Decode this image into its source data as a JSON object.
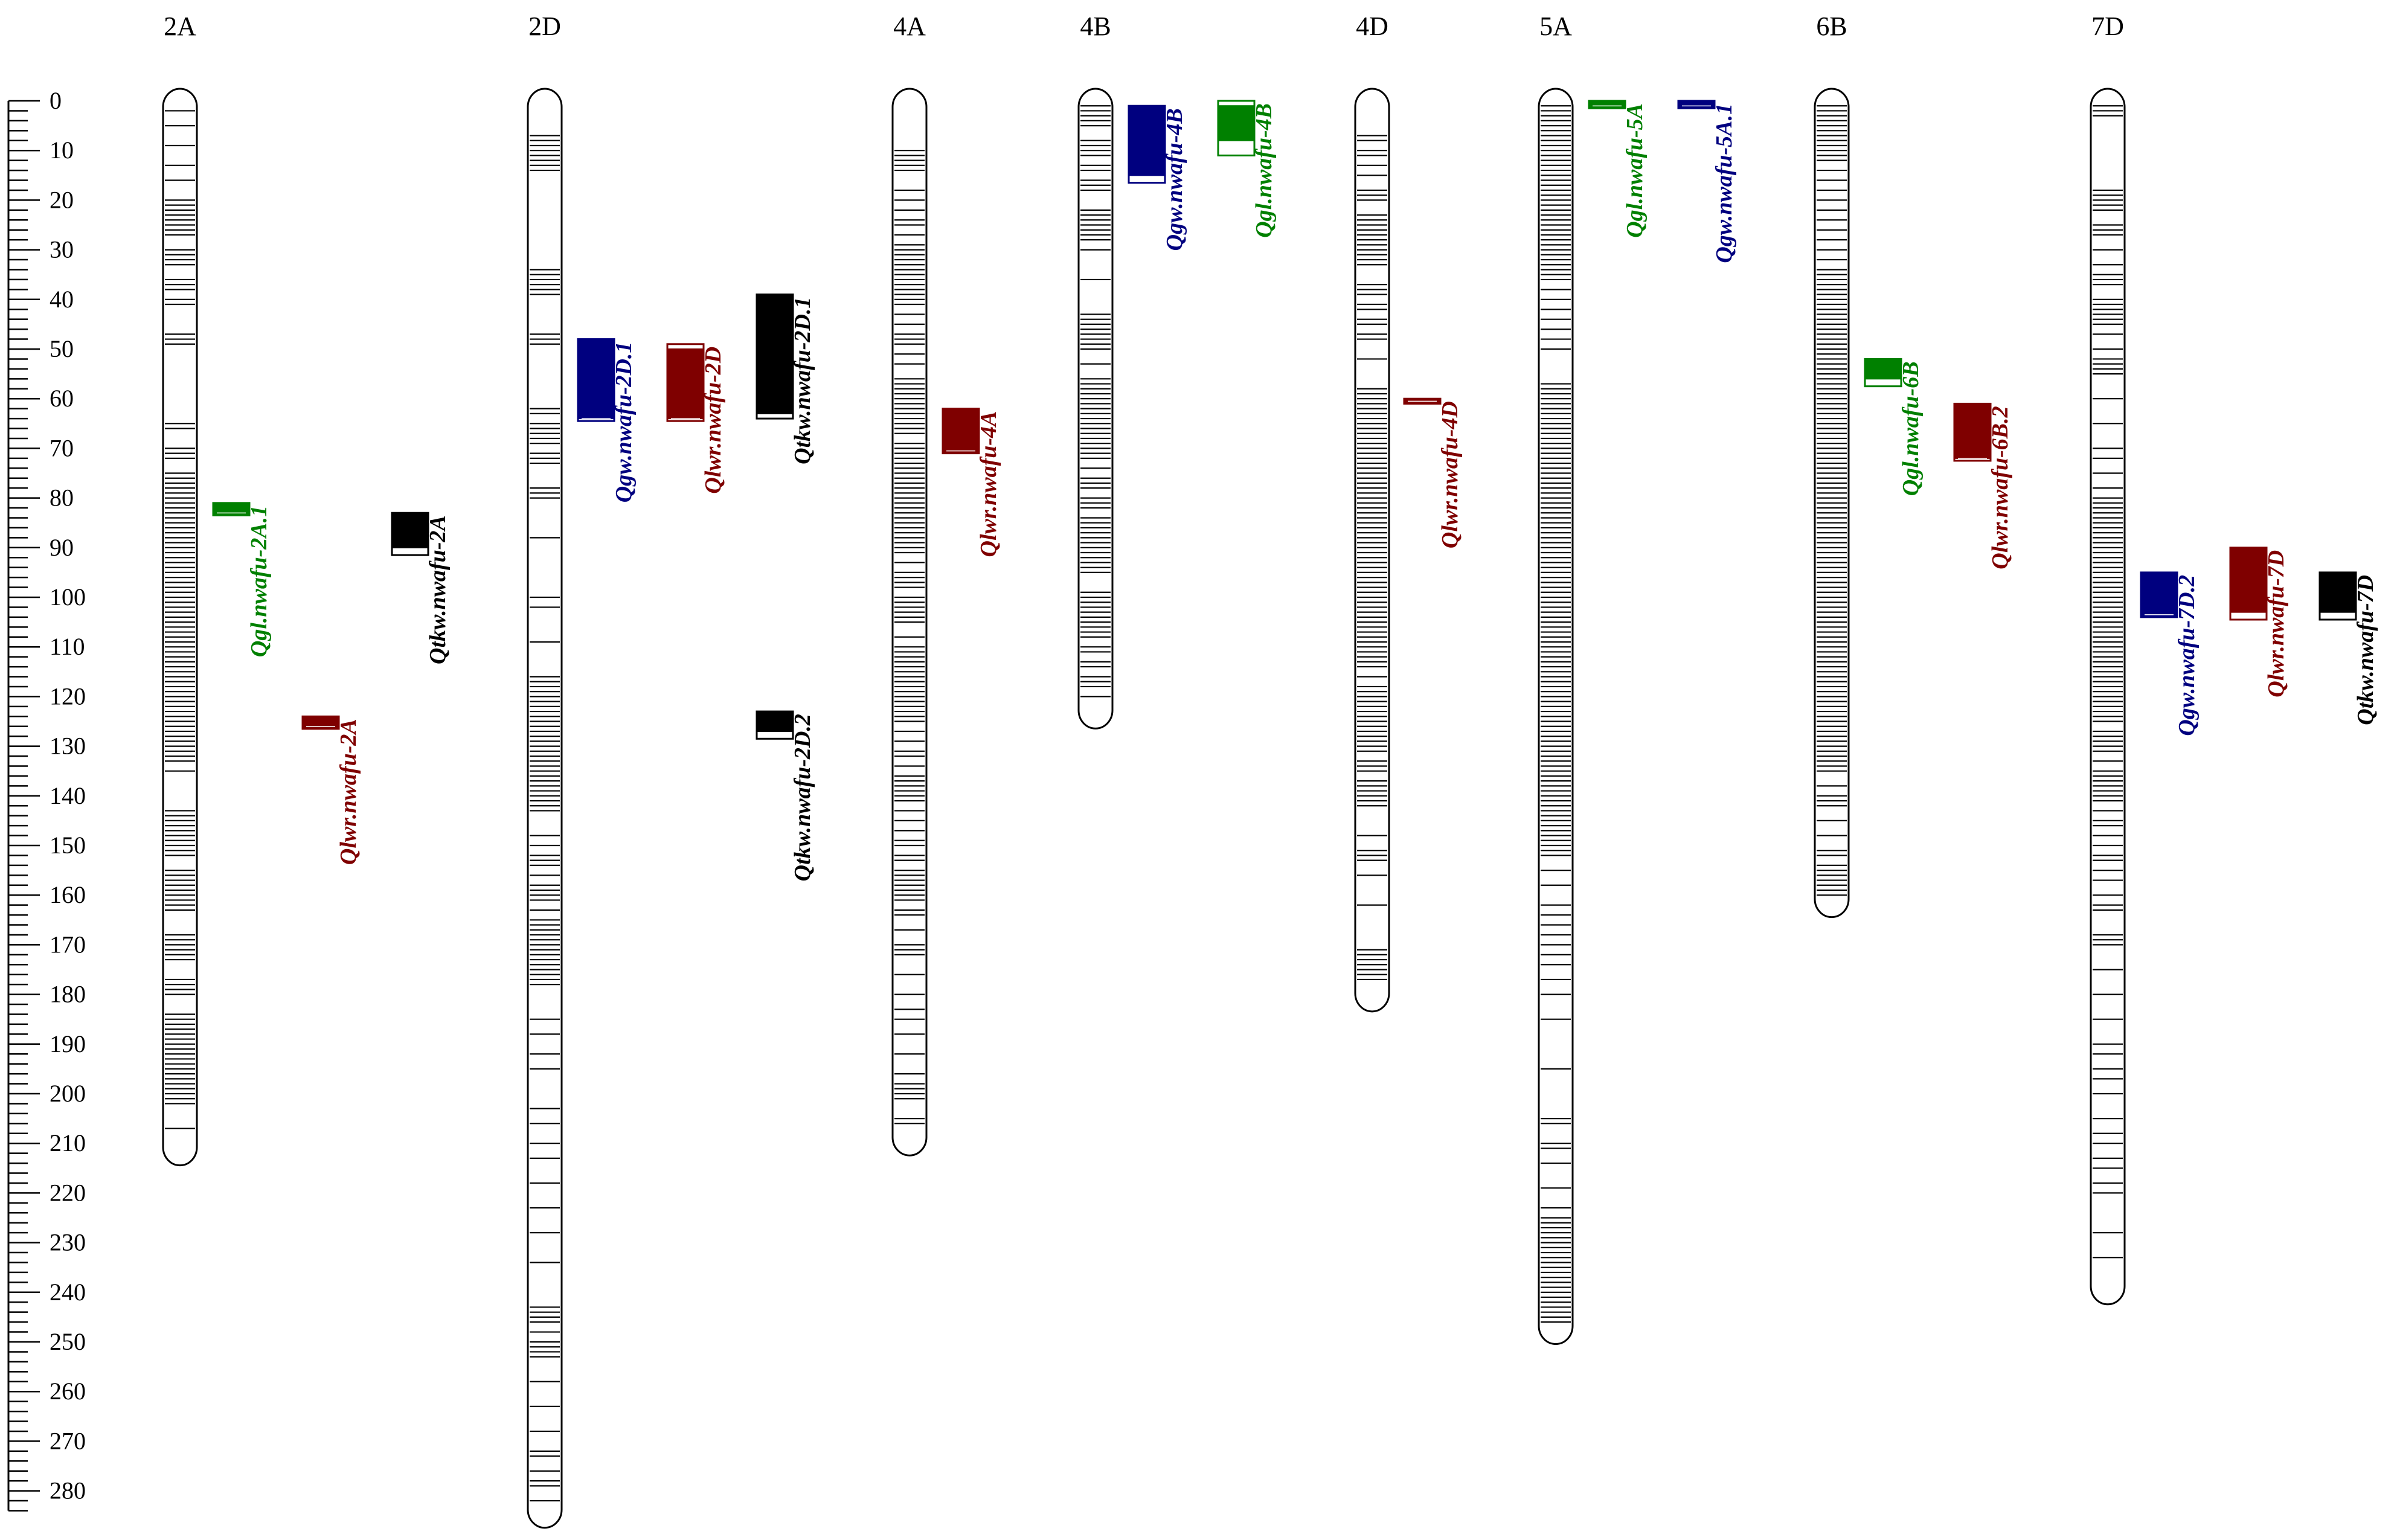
{
  "scale": {
    "min": 0,
    "max": 280,
    "major_step": 10,
    "minor_step": 2,
    "labels": [
      "0",
      "10",
      "20",
      "30",
      "40",
      "50",
      "60",
      "70",
      "80",
      "90",
      "100",
      "110",
      "120",
      "130",
      "140",
      "150",
      "160",
      "170",
      "180",
      "190",
      "200",
      "210",
      "220",
      "230",
      "240",
      "250",
      "260",
      "270",
      "280"
    ]
  },
  "colors": {
    "green": "#008000",
    "blue": "#00007f",
    "red": "#7f0000",
    "black": "#000000"
  },
  "chromosomes": [
    {
      "name": "2A",
      "length": 212,
      "markers": [
        2,
        5,
        9,
        13,
        16,
        20,
        21,
        22,
        23,
        24,
        25,
        26,
        27,
        30,
        31,
        32,
        33,
        36,
        37,
        38,
        40,
        41,
        47,
        48,
        49,
        65,
        66,
        70,
        71,
        72,
        75,
        76,
        77,
        78,
        79,
        80,
        81,
        82,
        83,
        84,
        85,
        86,
        87,
        88,
        89,
        90,
        91,
        92,
        93,
        94,
        95,
        96,
        97,
        98,
        99,
        100,
        101,
        102,
        103,
        104,
        105,
        106,
        107,
        108,
        109,
        110,
        111,
        112,
        113,
        114,
        115,
        116,
        117,
        118,
        119,
        120,
        121,
        122,
        123,
        124,
        125,
        126,
        127,
        128,
        129,
        130,
        131,
        132,
        133,
        135,
        143,
        144,
        145,
        146,
        147,
        148,
        149,
        150,
        151,
        152,
        155,
        156,
        157,
        158,
        159,
        160,
        161,
        162,
        163,
        168,
        169,
        170,
        171,
        172,
        173,
        177,
        178,
        179,
        180,
        184,
        185,
        186,
        187,
        188,
        189,
        190,
        191,
        192,
        193,
        194,
        195,
        196,
        197,
        198,
        199,
        200,
        201,
        202,
        207
      ]
    },
    {
      "name": "2D",
      "length": 285,
      "markers": [
        7,
        8,
        9,
        10,
        11,
        12,
        13,
        14,
        34,
        35,
        36,
        37,
        38,
        39,
        47,
        48,
        49,
        62,
        63,
        65,
        66,
        67,
        68,
        69,
        71,
        72,
        73,
        78,
        79,
        80,
        88,
        100,
        102,
        109,
        116,
        117,
        118,
        119,
        120,
        121,
        122,
        123,
        124,
        125,
        126,
        127,
        128,
        129,
        130,
        131,
        132,
        133,
        134,
        135,
        136,
        137,
        138,
        139,
        140,
        141,
        142,
        143,
        148,
        150,
        152,
        153,
        154,
        156,
        158,
        159,
        160,
        161,
        163,
        165,
        166,
        167,
        168,
        169,
        170,
        171,
        172,
        173,
        174,
        175,
        176,
        177,
        178,
        185,
        188,
        192,
        195,
        203,
        206,
        210,
        213,
        218,
        223,
        228,
        234,
        243,
        244,
        245,
        246,
        248,
        250,
        251,
        252,
        253,
        258,
        263,
        268,
        272,
        273,
        276,
        278,
        279,
        282
      ]
    },
    {
      "name": "4A",
      "length": 210,
      "markers": [
        10,
        11,
        12,
        13,
        14,
        18,
        20,
        22,
        24,
        25,
        27,
        29,
        30,
        31,
        32,
        33,
        34,
        35,
        36,
        37,
        38,
        39,
        40,
        41,
        43,
        45,
        47,
        48,
        49,
        51,
        53,
        56,
        57,
        58,
        59,
        60,
        61,
        62,
        63,
        64,
        65,
        66,
        67,
        69,
        70,
        71,
        72,
        73,
        74,
        75,
        76,
        77,
        78,
        79,
        80,
        81,
        82,
        83,
        84,
        85,
        86,
        87,
        88,
        89,
        90,
        91,
        93,
        95,
        96,
        97,
        98,
        100,
        101,
        102,
        103,
        104,
        105,
        108,
        110,
        111,
        112,
        113,
        114,
        115,
        116,
        117,
        118,
        119,
        120,
        121,
        122,
        123,
        124,
        125,
        127,
        129,
        131,
        132,
        134,
        136,
        137,
        138,
        139,
        140,
        141,
        143,
        145,
        147,
        149,
        150,
        152,
        153,
        155,
        156,
        157,
        158,
        159,
        160,
        161,
        163,
        164,
        167,
        170,
        171,
        172,
        176,
        180,
        183,
        185,
        188,
        192,
        196,
        198,
        199,
        200,
        201,
        205,
        206
      ]
    },
    {
      "name": "4B",
      "length": 124,
      "markers": [
        1,
        2,
        3,
        4,
        5,
        8,
        9,
        10,
        11,
        13,
        14,
        16,
        17,
        18,
        22,
        23,
        24,
        25,
        26,
        27,
        28,
        30,
        36,
        43,
        44,
        45,
        46,
        47,
        48,
        49,
        50,
        53,
        56,
        57,
        58,
        59,
        60,
        61,
        62,
        63,
        64,
        65,
        66,
        67,
        68,
        69,
        70,
        71,
        72,
        74,
        76,
        77,
        78,
        80,
        81,
        82,
        84,
        85,
        86,
        87,
        88,
        89,
        90,
        91,
        92,
        93,
        94,
        95,
        99,
        100,
        101,
        102,
        103,
        104,
        105,
        106,
        107,
        108,
        110,
        111,
        113,
        114,
        116,
        117,
        118,
        120
      ]
    },
    {
      "name": "4D",
      "length": 181,
      "markers": [
        7,
        8,
        10,
        11,
        13,
        15,
        18,
        19,
        20,
        23,
        24,
        25,
        26,
        27,
        28,
        29,
        30,
        31,
        32,
        33,
        37,
        38,
        39,
        41,
        42,
        44,
        45,
        47,
        48,
        52,
        58,
        59,
        60,
        61,
        62,
        63,
        64,
        65,
        66,
        67,
        68,
        69,
        70,
        71,
        72,
        73,
        74,
        75,
        76,
        77,
        78,
        79,
        80,
        81,
        82,
        83,
        84,
        85,
        86,
        87,
        88,
        89,
        90,
        91,
        92,
        93,
        94,
        95,
        96,
        97,
        98,
        99,
        100,
        101,
        102,
        103,
        104,
        105,
        106,
        107,
        108,
        109,
        110,
        111,
        112,
        113,
        114,
        116,
        118,
        119,
        120,
        121,
        122,
        123,
        124,
        125,
        126,
        127,
        128,
        129,
        130,
        131,
        133,
        134,
        135,
        137,
        138,
        139,
        140,
        141,
        142,
        148,
        151,
        152,
        153,
        156,
        162,
        171,
        172,
        173,
        174,
        175,
        176,
        177
      ]
    },
    {
      "name": "5A",
      "length": 248,
      "markers": [
        1,
        2,
        3,
        4,
        5,
        6,
        7,
        8,
        9,
        10,
        11,
        12,
        13,
        14,
        15,
        16,
        17,
        18,
        19,
        20,
        21,
        22,
        23,
        24,
        25,
        26,
        27,
        28,
        29,
        30,
        31,
        32,
        33,
        34,
        35,
        36,
        38,
        40,
        42,
        44,
        46,
        48,
        50,
        57,
        58,
        59,
        60,
        61,
        62,
        63,
        64,
        65,
        66,
        67,
        68,
        69,
        70,
        71,
        72,
        73,
        74,
        75,
        76,
        77,
        78,
        79,
        80,
        81,
        82,
        83,
        84,
        85,
        86,
        87,
        88,
        89,
        90,
        91,
        92,
        93,
        94,
        95,
        96,
        97,
        98,
        99,
        100,
        101,
        102,
        103,
        104,
        105,
        106,
        107,
        108,
        109,
        110,
        111,
        112,
        113,
        114,
        115,
        116,
        117,
        118,
        119,
        120,
        121,
        122,
        123,
        124,
        125,
        126,
        127,
        128,
        129,
        130,
        131,
        132,
        133,
        134,
        135,
        136,
        137,
        138,
        139,
        140,
        141,
        142,
        143,
        144,
        145,
        146,
        147,
        148,
        149,
        150,
        151,
        152,
        155,
        158,
        162,
        164,
        166,
        168,
        170,
        172,
        174,
        177,
        180,
        185,
        195,
        205,
        206,
        210,
        211,
        214,
        219,
        223,
        225,
        226,
        227,
        228,
        229,
        230,
        231,
        232,
        233,
        234,
        235,
        236,
        237,
        238,
        239,
        240,
        241,
        242,
        243,
        244,
        245,
        246
      ]
    },
    {
      "name": "6B",
      "length": 162,
      "markers": [
        1,
        2,
        3,
        4,
        5,
        6,
        7,
        8,
        9,
        10,
        11,
        12,
        14,
        16,
        18,
        20,
        22,
        24,
        26,
        28,
        30,
        32,
        34,
        35,
        36,
        37,
        38,
        39,
        40,
        41,
        42,
        43,
        44,
        45,
        46,
        47,
        48,
        49,
        50,
        51,
        52,
        53,
        54,
        55,
        56,
        57,
        58,
        59,
        60,
        61,
        62,
        63,
        64,
        65,
        66,
        67,
        68,
        69,
        70,
        71,
        72,
        73,
        74,
        75,
        76,
        77,
        78,
        79,
        80,
        81,
        82,
        83,
        84,
        85,
        86,
        87,
        88,
        89,
        90,
        91,
        92,
        93,
        94,
        95,
        96,
        97,
        98,
        99,
        100,
        101,
        102,
        103,
        104,
        105,
        106,
        107,
        108,
        109,
        110,
        111,
        112,
        113,
        114,
        115,
        116,
        117,
        118,
        119,
        120,
        121,
        122,
        123,
        124,
        125,
        126,
        127,
        128,
        129,
        130,
        131,
        132,
        133,
        134,
        135,
        138,
        140,
        141,
        142,
        145,
        148,
        151,
        152,
        154,
        155,
        156,
        157,
        158,
        159,
        160
      ]
    },
    {
      "name": "7D",
      "length": 240,
      "markers": [
        1,
        2,
        3,
        18,
        19,
        20,
        21,
        22,
        25,
        26,
        27,
        30,
        33,
        35,
        36,
        37,
        40,
        41,
        42,
        43,
        44,
        45,
        47,
        50,
        52,
        53,
        54,
        55,
        60,
        65,
        70,
        72,
        75,
        78,
        80,
        81,
        82,
        83,
        84,
        85,
        86,
        87,
        88,
        89,
        90,
        91,
        92,
        93,
        94,
        95,
        96,
        97,
        98,
        99,
        100,
        101,
        102,
        103,
        104,
        105,
        106,
        107,
        108,
        109,
        110,
        111,
        112,
        113,
        114,
        115,
        116,
        117,
        118,
        119,
        120,
        121,
        122,
        123,
        124,
        125,
        127,
        128,
        129,
        130,
        131,
        133,
        135,
        136,
        137,
        138,
        139,
        140,
        141,
        143,
        145,
        146,
        148,
        150,
        152,
        153,
        155,
        157,
        160,
        162,
        163,
        168,
        169,
        170,
        175,
        180,
        185,
        190,
        192,
        195,
        197,
        200,
        205,
        208,
        210,
        213,
        215,
        218,
        220,
        228,
        233
      ]
    }
  ],
  "qtls": [
    {
      "label": "Qgl.nwafu-2A.1",
      "chrom": "2A",
      "color": "green",
      "start": 81,
      "end": 83.5,
      "box_start": 81,
      "box_end": 83.5
    },
    {
      "label": "Qlwr.nwafu-2A",
      "chrom": "2A",
      "color": "red",
      "start": 124,
      "end": 126.5,
      "box_start": 124,
      "box_end": 126.5
    },
    {
      "label": "Qtkw.nwafu-2A",
      "chrom": "2A",
      "color": "black",
      "start": 83,
      "end": 91.5,
      "box_start": 83,
      "box_end": 90
    },
    {
      "label": "Qgw.nwafu-2D.1",
      "chrom": "2D",
      "color": "blue",
      "start": 48,
      "end": 64.5,
      "box_start": 48,
      "box_end": 64
    },
    {
      "label": "Qlwr.nwafu-2D",
      "chrom": "2D",
      "color": "red",
      "start": 49,
      "end": 64.5,
      "box_start": 50,
      "box_end": 64
    },
    {
      "label": "Qtkw.nwafu-2D.1",
      "chrom": "2D",
      "color": "black",
      "start": 39,
      "end": 64,
      "box_start": 39,
      "box_end": 63
    },
    {
      "label": "Qtkw.nwafu-2D.2",
      "chrom": "2D",
      "color": "black",
      "start": 123,
      "end": 128.5,
      "box_start": 123,
      "box_end": 127
    },
    {
      "label": "Qlwr.nwafu-4A",
      "chrom": "4A",
      "color": "red",
      "start": 62,
      "end": 71,
      "box_start": 62,
      "box_end": 71
    },
    {
      "label": "Qgw.nwafu-4B",
      "chrom": "4B",
      "color": "blue",
      "start": 1,
      "end": 16.5,
      "box_start": 1,
      "box_end": 15
    },
    {
      "label": "Qgl.nwafu-4B",
      "chrom": "4B",
      "color": "green",
      "start": 0,
      "end": 11,
      "box_start": 1,
      "box_end": 8
    },
    {
      "label": "Qlwr.nwafu-4D",
      "chrom": "4D",
      "color": "red",
      "start": 60,
      "end": 61,
      "box_start": 60,
      "box_end": 61
    },
    {
      "label": "Qgl.nwafu-5A",
      "chrom": "5A",
      "color": "green",
      "start": 0,
      "end": 1.5,
      "box_start": 0,
      "box_end": 1.5
    },
    {
      "label": "Qgw.nwafu-5A.1",
      "chrom": "5A",
      "color": "blue",
      "start": 0,
      "end": 1.5,
      "box_start": 0,
      "box_end": 1.5
    },
    {
      "label": "Qgl.nwafu-6B",
      "chrom": "6B",
      "color": "green",
      "start": 52,
      "end": 57.5,
      "box_start": 52,
      "box_end": 56
    },
    {
      "label": "Qlwr.nwafu-6B.2",
      "chrom": "6B",
      "color": "red",
      "start": 61,
      "end": 72.5,
      "box_start": 61,
      "box_end": 72
    },
    {
      "label": "Qgw.nwafu-7D.2",
      "chrom": "7D",
      "color": "blue",
      "start": 95,
      "end": 104,
      "box_start": 95,
      "box_end": 104
    },
    {
      "label": "Qlwr.nwafu-7D",
      "chrom": "7D",
      "color": "red",
      "start": 90,
      "end": 104.5,
      "box_start": 90,
      "box_end": 103
    },
    {
      "label": "Qtkw.nwafu-7D",
      "chrom": "7D",
      "color": "black",
      "start": 95,
      "end": 104.5,
      "box_start": 95,
      "box_end": 103
    }
  ]
}
